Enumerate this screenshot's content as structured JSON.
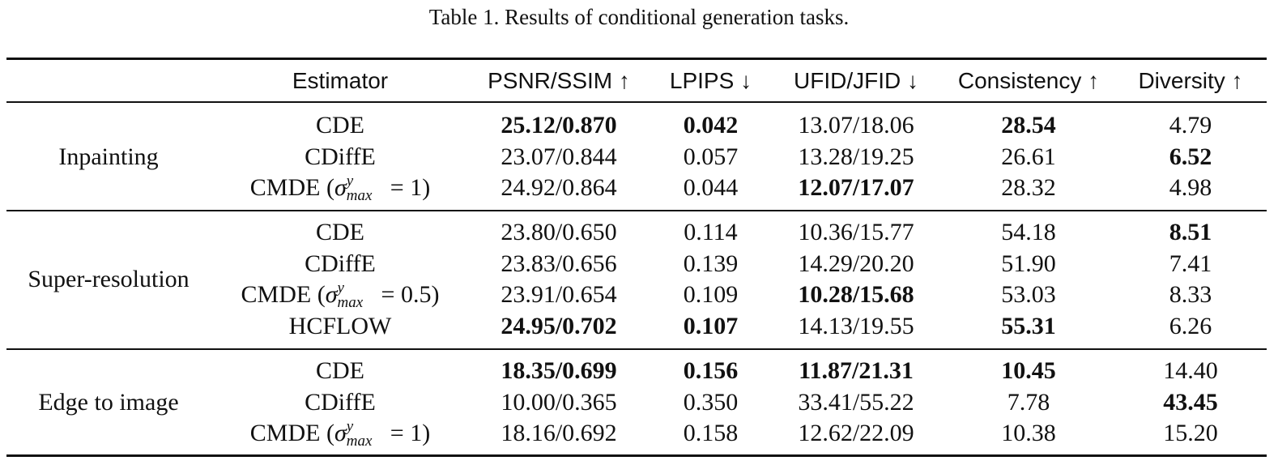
{
  "caption": "Table 1. Results of conditional generation tasks.",
  "headers": {
    "estimator": "Estimator",
    "psnr": "PSNR/SSIM ↑",
    "lpips": "LPIPS ↓",
    "fid": "UFID/JFID ↓",
    "consistency": "Consistency ↑",
    "diversity": "Diversity ↑"
  },
  "groups": [
    {
      "task": "Inpainting",
      "rows": [
        {
          "estimator": "CDE",
          "psnr": "25.12/0.870",
          "lpips": "0.042",
          "fid": "13.07/18.06",
          "consistency": "28.54",
          "diversity": "4.79",
          "bold": [
            "psnr",
            "lpips",
            "consistency"
          ]
        },
        {
          "estimator": "CDiffE",
          "psnr": "23.07/0.844",
          "lpips": "0.057",
          "fid": "13.28/19.25",
          "consistency": "26.61",
          "diversity": "6.52",
          "bold": [
            "diversity"
          ]
        },
        {
          "estimator": "CMDE",
          "sigma": "1",
          "psnr": "24.92/0.864",
          "lpips": "0.044",
          "fid": "12.07/17.07",
          "consistency": "28.32",
          "diversity": "4.98",
          "bold": [
            "fid"
          ]
        }
      ]
    },
    {
      "task": "Super-resolution",
      "rows": [
        {
          "estimator": "CDE",
          "psnr": "23.80/0.650",
          "lpips": "0.114",
          "fid": "10.36/15.77",
          "consistency": "54.18",
          "diversity": "8.51",
          "bold": [
            "diversity"
          ]
        },
        {
          "estimator": "CDiffE",
          "psnr": "23.83/0.656",
          "lpips": "0.139",
          "fid": "14.29/20.20",
          "consistency": "51.90",
          "diversity": "7.41",
          "bold": []
        },
        {
          "estimator": "CMDE",
          "sigma": "0.5",
          "psnr": "23.91/0.654",
          "lpips": "0.109",
          "fid": "10.28/15.68",
          "consistency": "53.03",
          "diversity": "8.33",
          "bold": [
            "fid"
          ]
        },
        {
          "estimator": "HCFLOW",
          "psnr": "24.95/0.702",
          "lpips": "0.107",
          "fid": "14.13/19.55",
          "consistency": "55.31",
          "diversity": "6.26",
          "bold": [
            "psnr",
            "lpips",
            "consistency"
          ]
        }
      ]
    },
    {
      "task": "Edge to image",
      "rows": [
        {
          "estimator": "CDE",
          "psnr": "18.35/0.699",
          "lpips": "0.156",
          "fid": "11.87/21.31",
          "consistency": "10.45",
          "diversity": "14.40",
          "bold": [
            "psnr",
            "lpips",
            "fid",
            "consistency"
          ]
        },
        {
          "estimator": "CDiffE",
          "psnr": "10.00/0.365",
          "lpips": "0.350",
          "fid": "33.41/55.22",
          "consistency": "7.78",
          "diversity": "43.45",
          "bold": [
            "diversity"
          ]
        },
        {
          "estimator": "CMDE",
          "sigma": "1",
          "psnr": "18.16/0.692",
          "lpips": "0.158",
          "fid": "12.62/22.09",
          "consistency": "10.38",
          "diversity": "15.20",
          "bold": []
        }
      ]
    }
  ]
}
